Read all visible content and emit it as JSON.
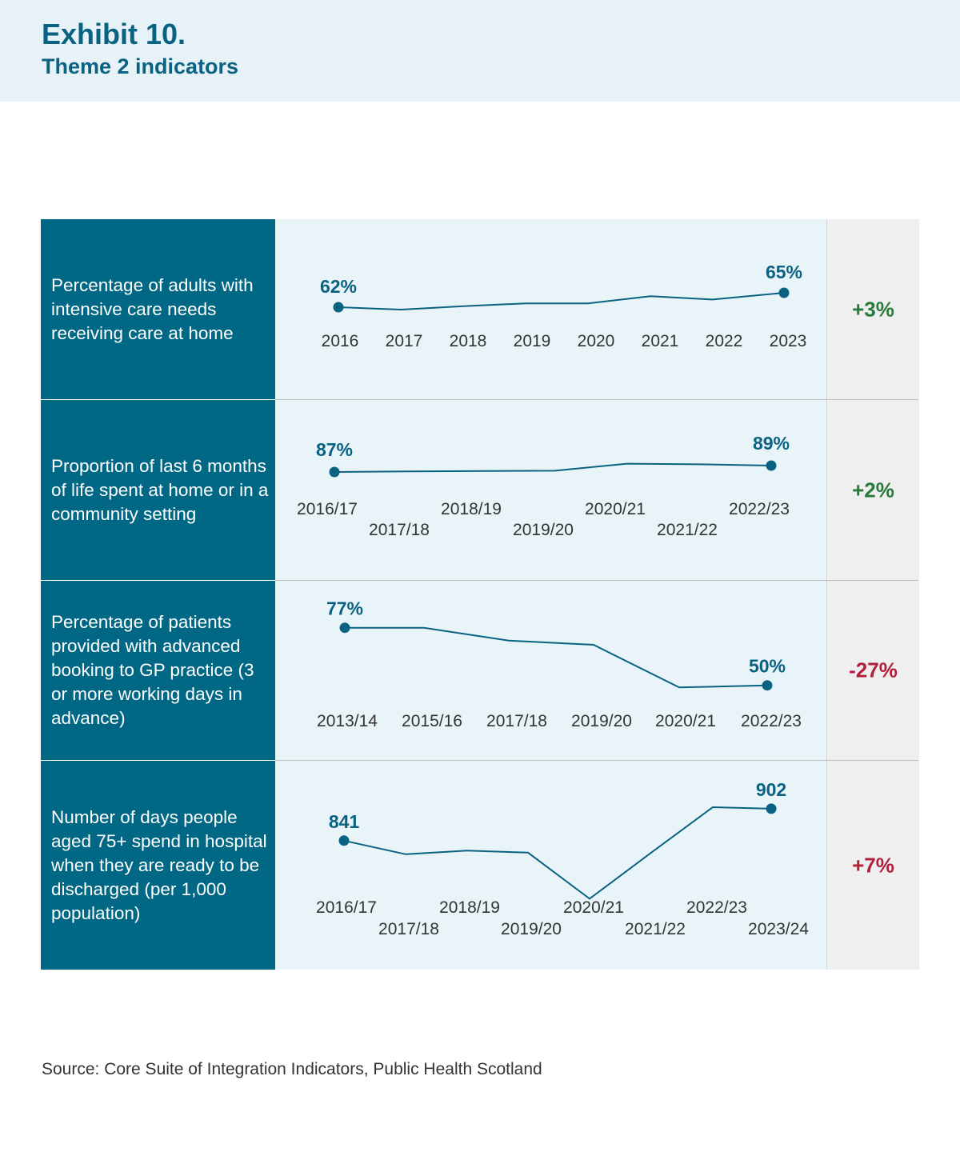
{
  "header": {
    "title": "Exhibit 10.",
    "subtitle": "Theme 2 indicators"
  },
  "colors": {
    "header_bg": "#e6f2f7",
    "title": "#0a6282",
    "label_bg": "#006785",
    "chart_bg": "#e9f4f9",
    "change_bg": "#efefef",
    "line": "#0a6282",
    "positive": "#2a7a3b",
    "negative": "#b11f3a"
  },
  "rows": [
    {
      "label": "Percentage of adults with intensive care needs receiving care at home",
      "change": "+3%",
      "change_color": "#2a7a3b",
      "start_label": "62%",
      "end_label": "65%"
    },
    {
      "label": "Proportion of last 6 months of life spent at home or in a community setting",
      "change": "+2%",
      "change_color": "#2a7a3b",
      "start_label": "87%",
      "end_label": "89%"
    },
    {
      "label": "Percentage of patients provided with advanced booking to GP practice (3 or more working days in advance)",
      "change": "-27%",
      "change_color": "#b11f3a",
      "start_label": "77%",
      "end_label": "50%"
    },
    {
      "label": "Number of days people aged 75+ spend in hospital when they are ready to be discharged (per 1,000 population)",
      "change": "+7%",
      "change_color": "#b11f3a",
      "start_label": "841",
      "end_label": "902"
    }
  ],
  "chart_data": [
    {
      "type": "line",
      "x": [
        "2016",
        "2017",
        "2018",
        "2019",
        "2020",
        "2021",
        "2022",
        "2023"
      ],
      "y": [
        62,
        61.5,
        62.2,
        62.8,
        62.8,
        64.3,
        63.6,
        65
      ],
      "ylim": [
        55,
        70
      ]
    },
    {
      "type": "line",
      "x": [
        "2016/17",
        "2017/18",
        "2018/19",
        "2019/20",
        "2020/21",
        "2021/22",
        "2022/23"
      ],
      "y": [
        87,
        87.2,
        87.3,
        87.4,
        89.6,
        89.4,
        89
      ],
      "ylim": [
        75,
        100
      ]
    },
    {
      "type": "line",
      "x": [
        "2013/14",
        "2015/16",
        "2017/18",
        "2019/20",
        "2020/21",
        "2022/23"
      ],
      "y": [
        77,
        77,
        71,
        69,
        49,
        50
      ],
      "ylim": [
        30,
        90
      ]
    },
    {
      "type": "line",
      "x": [
        "2016/17",
        "2017/18",
        "2018/19",
        "2019/20",
        "2020/21",
        "2021/22",
        "2022/23",
        "2023/24"
      ],
      "y": [
        841,
        815,
        822,
        818,
        730,
        818,
        905,
        902
      ],
      "ylim": [
        700,
        960
      ]
    }
  ],
  "source": "Source: Core Suite of Integration Indicators, Public Health Scotland"
}
